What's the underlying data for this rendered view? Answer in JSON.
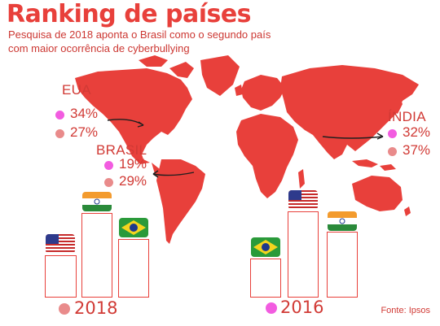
{
  "title": "Ranking de países",
  "subtitle": "Pesquisa de 2018 aponta o Brasil como o segundo país com maior ocorrência de cyberbullying",
  "source": "Fonte: Ipsos",
  "colors": {
    "accent": "#e8403b",
    "map": "#e8403b",
    "dot_2018": "#e98b8b",
    "dot_2016": "#f25ce0",
    "bar_border": "#e8403b"
  },
  "chart_data": {
    "type": "bar",
    "title": "Ranking de países",
    "categories": [
      "EUA",
      "BRASIL",
      "ÍNDIA"
    ],
    "series": [
      {
        "name": "2016",
        "values": [
          34,
          19,
          32
        ]
      },
      {
        "name": "2018",
        "values": [
          27,
          29,
          37
        ]
      }
    ],
    "annotations": {
      "EUA": [
        "34%",
        "27%"
      ],
      "BRASIL": [
        "19%",
        "29%"
      ],
      "ÍNDIA": [
        "32%",
        "37%"
      ]
    },
    "groups": [
      {
        "year": "2018",
        "order": [
          "EUA",
          "ÍNDIA",
          "BRASIL"
        ]
      },
      {
        "year": "2016",
        "order": [
          "BRASIL",
          "EUA",
          "ÍNDIA"
        ]
      }
    ],
    "icons": {
      "EUA": "usa-flag-icon",
      "BRASIL": "brazil-flag-icon",
      "ÍNDIA": "india-flag-icon"
    }
  }
}
